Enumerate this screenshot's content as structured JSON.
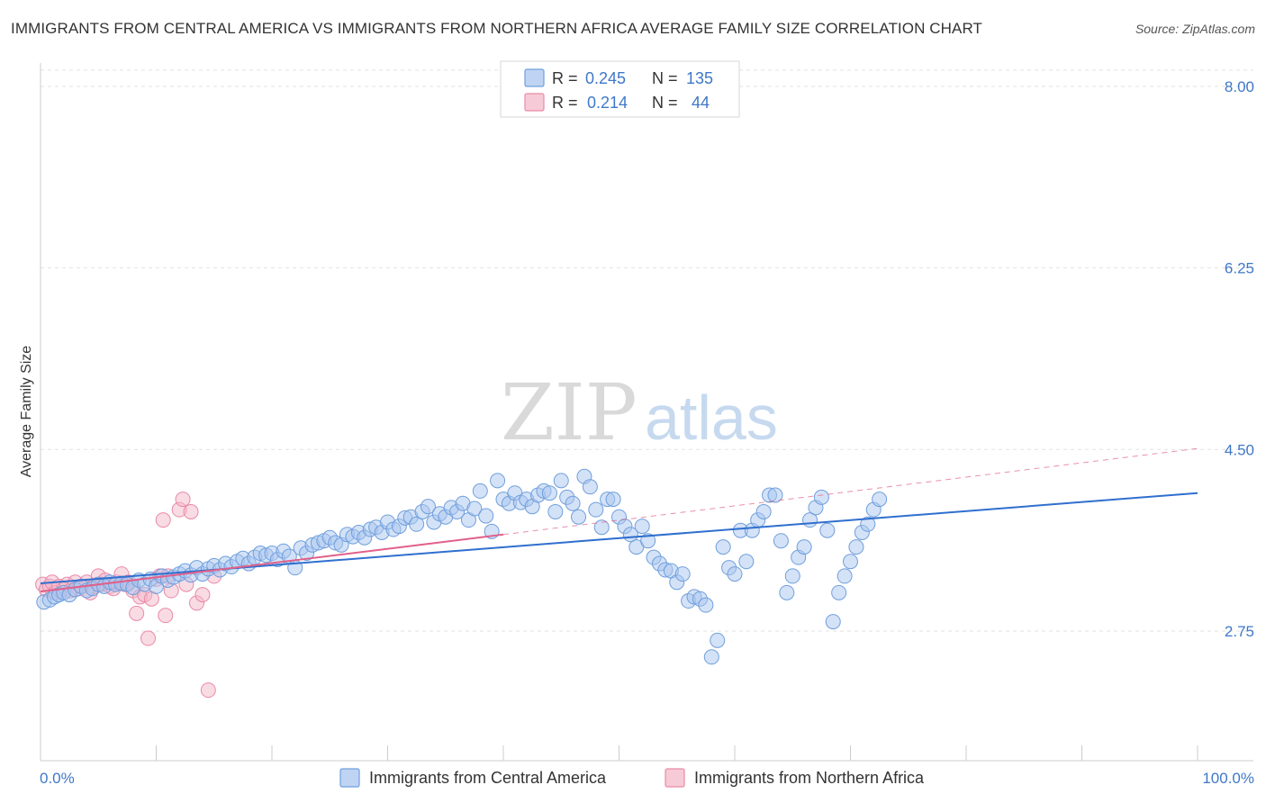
{
  "title": "IMMIGRANTS FROM CENTRAL AMERICA VS IMMIGRANTS FROM NORTHERN AFRICA AVERAGE FAMILY SIZE CORRELATION CHART",
  "source": "Source: ZipAtlas.com",
  "watermark": {
    "zip": "ZIP",
    "atlas": "atlas"
  },
  "legend_top": [
    {
      "r_label": "R =",
      "r_value": "0.245",
      "n_label": "N =",
      "n_value": "135",
      "color": "#a9c6ef"
    },
    {
      "r_label": "R =",
      "r_value": "0.214",
      "n_label": "N =",
      "n_value": "44",
      "color": "#f4b8ca"
    }
  ],
  "colors": {
    "blue_fill": "#a9c6ef",
    "blue_stroke": "#6f9fdc",
    "blue_line": "#2f6fcf",
    "pink_fill": "#f4b8ca",
    "pink_stroke": "#e98aa8",
    "pink_line": "#e0608a",
    "grid": "#e2e2e2",
    "tick_text": "#3f78c8"
  },
  "chart_data": {
    "type": "scatter",
    "title": "IMMIGRANTS FROM CENTRAL AMERICA VS IMMIGRANTS FROM NORTHERN AFRICA AVERAGE FAMILY SIZE CORRELATION CHART",
    "xlabel": "",
    "ylabel": "Average Family Size",
    "xlim": [
      0,
      100
    ],
    "ylim": [
      1.5,
      8.3
    ],
    "x_tick_labels": [
      "0.0%",
      "100.0%"
    ],
    "y_ticks": [
      2.75,
      4.5,
      6.25,
      8.0
    ],
    "y_tick_labels": [
      "2.75",
      "4.50",
      "6.25",
      "8.00"
    ],
    "grid": true,
    "legend_position": "bottom",
    "series": [
      {
        "name": "Immigrants from Central America",
        "color": "#a9c6ef",
        "trend": {
          "x": [
            0,
            100
          ],
          "y": [
            3.21,
            4.08
          ]
        },
        "points": [
          [
            0.3,
            3.03
          ],
          [
            0.8,
            3.05
          ],
          [
            1.2,
            3.08
          ],
          [
            1.6,
            3.1
          ],
          [
            2.0,
            3.12
          ],
          [
            2.5,
            3.1
          ],
          [
            3.0,
            3.15
          ],
          [
            3.5,
            3.18
          ],
          [
            4.0,
            3.14
          ],
          [
            4.5,
            3.16
          ],
          [
            5.0,
            3.2
          ],
          [
            5.5,
            3.18
          ],
          [
            6.0,
            3.22
          ],
          [
            6.5,
            3.2
          ],
          [
            7.0,
            3.21
          ],
          [
            7.5,
            3.2
          ],
          [
            8.0,
            3.17
          ],
          [
            8.5,
            3.24
          ],
          [
            9.0,
            3.2
          ],
          [
            9.5,
            3.25
          ],
          [
            10.0,
            3.18
          ],
          [
            10.5,
            3.28
          ],
          [
            11.0,
            3.24
          ],
          [
            11.5,
            3.27
          ],
          [
            12.0,
            3.3
          ],
          [
            12.5,
            3.33
          ],
          [
            13.0,
            3.29
          ],
          [
            13.5,
            3.36
          ],
          [
            14.0,
            3.3
          ],
          [
            14.5,
            3.35
          ],
          [
            15.0,
            3.38
          ],
          [
            15.5,
            3.34
          ],
          [
            16.0,
            3.4
          ],
          [
            16.5,
            3.37
          ],
          [
            17.0,
            3.42
          ],
          [
            17.5,
            3.45
          ],
          [
            18.0,
            3.4
          ],
          [
            18.5,
            3.46
          ],
          [
            19.0,
            3.5
          ],
          [
            19.5,
            3.48
          ],
          [
            20.0,
            3.5
          ],
          [
            20.5,
            3.44
          ],
          [
            21.0,
            3.52
          ],
          [
            21.5,
            3.47
          ],
          [
            22.0,
            3.36
          ],
          [
            22.5,
            3.55
          ],
          [
            23.0,
            3.5
          ],
          [
            23.5,
            3.58
          ],
          [
            24.0,
            3.6
          ],
          [
            24.5,
            3.62
          ],
          [
            25.0,
            3.65
          ],
          [
            25.5,
            3.6
          ],
          [
            26.0,
            3.58
          ],
          [
            26.5,
            3.68
          ],
          [
            27.0,
            3.66
          ],
          [
            27.5,
            3.7
          ],
          [
            28.0,
            3.65
          ],
          [
            28.5,
            3.73
          ],
          [
            29.0,
            3.75
          ],
          [
            29.5,
            3.7
          ],
          [
            30.0,
            3.8
          ],
          [
            30.5,
            3.73
          ],
          [
            31.0,
            3.76
          ],
          [
            31.5,
            3.84
          ],
          [
            32.0,
            3.85
          ],
          [
            32.5,
            3.78
          ],
          [
            33.0,
            3.9
          ],
          [
            33.5,
            3.95
          ],
          [
            34.0,
            3.8
          ],
          [
            34.5,
            3.88
          ],
          [
            35.0,
            3.85
          ],
          [
            35.5,
            3.94
          ],
          [
            36.0,
            3.9
          ],
          [
            36.5,
            3.98
          ],
          [
            37.0,
            3.82
          ],
          [
            37.5,
            3.93
          ],
          [
            38.0,
            4.1
          ],
          [
            38.5,
            3.86
          ],
          [
            39.0,
            3.71
          ],
          [
            39.5,
            4.2
          ],
          [
            40.0,
            4.02
          ],
          [
            40.5,
            3.98
          ],
          [
            41.0,
            4.08
          ],
          [
            41.5,
            3.99
          ],
          [
            42.0,
            4.02
          ],
          [
            42.5,
            3.95
          ],
          [
            43.0,
            4.06
          ],
          [
            43.5,
            4.1
          ],
          [
            44.0,
            4.08
          ],
          [
            44.5,
            3.9
          ],
          [
            45.0,
            4.2
          ],
          [
            45.5,
            4.04
          ],
          [
            46.0,
            3.98
          ],
          [
            46.5,
            3.85
          ],
          [
            47.0,
            4.24
          ],
          [
            47.5,
            4.14
          ],
          [
            48.0,
            3.92
          ],
          [
            48.5,
            3.75
          ],
          [
            49.0,
            4.02
          ],
          [
            49.5,
            4.02
          ],
          [
            50.0,
            3.85
          ],
          [
            50.5,
            3.76
          ],
          [
            51.0,
            3.68
          ],
          [
            51.5,
            3.56
          ],
          [
            52.0,
            3.76
          ],
          [
            52.5,
            3.62
          ],
          [
            53.0,
            3.46
          ],
          [
            53.5,
            3.4
          ],
          [
            54.0,
            3.34
          ],
          [
            54.5,
            3.33
          ],
          [
            55.0,
            3.22
          ],
          [
            55.5,
            3.3
          ],
          [
            56.0,
            3.04
          ],
          [
            56.5,
            3.08
          ],
          [
            57.0,
            3.06
          ],
          [
            57.5,
            3.0
          ],
          [
            58.0,
            2.5
          ],
          [
            58.5,
            2.66
          ],
          [
            59.0,
            3.56
          ],
          [
            59.5,
            3.36
          ],
          [
            60.0,
            3.3
          ],
          [
            60.5,
            3.72
          ],
          [
            61.0,
            3.42
          ],
          [
            61.5,
            3.72
          ],
          [
            62.0,
            3.82
          ],
          [
            62.5,
            3.9
          ],
          [
            63.0,
            4.06
          ],
          [
            63.5,
            4.06
          ],
          [
            64.0,
            3.62
          ],
          [
            64.5,
            3.12
          ],
          [
            65.0,
            3.28
          ],
          [
            65.5,
            3.46
          ],
          [
            66.0,
            3.56
          ],
          [
            66.5,
            3.82
          ],
          [
            67.0,
            3.94
          ],
          [
            67.5,
            4.04
          ],
          [
            68.0,
            3.72
          ],
          [
            68.5,
            2.84
          ],
          [
            69.0,
            3.12
          ],
          [
            69.5,
            3.28
          ],
          [
            70.0,
            3.42
          ],
          [
            70.5,
            3.56
          ],
          [
            71.0,
            3.7
          ],
          [
            71.5,
            3.78
          ],
          [
            72.0,
            3.92
          ],
          [
            72.5,
            4.02
          ]
        ]
      },
      {
        "name": "Immigrants from Northern Africa",
        "color": "#f4b8ca",
        "trend": {
          "x": [
            0,
            40
          ],
          "y": [
            3.13,
            3.68
          ]
        },
        "trend_dashed": {
          "x": [
            40,
            100
          ],
          "y": [
            3.68,
            4.51
          ]
        },
        "points": [
          [
            0.2,
            3.2
          ],
          [
            0.5,
            3.15
          ],
          [
            0.8,
            3.18
          ],
          [
            1.0,
            3.22
          ],
          [
            1.3,
            3.12
          ],
          [
            1.6,
            3.18
          ],
          [
            2.0,
            3.15
          ],
          [
            2.3,
            3.2
          ],
          [
            2.6,
            3.14
          ],
          [
            3.0,
            3.22
          ],
          [
            3.3,
            3.16
          ],
          [
            3.6,
            3.18
          ],
          [
            4.0,
            3.22
          ],
          [
            4.3,
            3.12
          ],
          [
            4.6,
            3.18
          ],
          [
            5.0,
            3.28
          ],
          [
            5.3,
            3.2
          ],
          [
            5.6,
            3.24
          ],
          [
            6.0,
            3.18
          ],
          [
            6.3,
            3.16
          ],
          [
            6.6,
            3.22
          ],
          [
            7.0,
            3.3
          ],
          [
            7.3,
            3.2
          ],
          [
            7.6,
            3.22
          ],
          [
            8.0,
            3.14
          ],
          [
            8.3,
            2.92
          ],
          [
            8.6,
            3.08
          ],
          [
            9.0,
            3.1
          ],
          [
            9.3,
            2.68
          ],
          [
            9.6,
            3.06
          ],
          [
            10.0,
            3.25
          ],
          [
            10.3,
            3.28
          ],
          [
            10.6,
            3.82
          ],
          [
            10.8,
            2.9
          ],
          [
            11.0,
            3.28
          ],
          [
            11.3,
            3.14
          ],
          [
            12.0,
            3.92
          ],
          [
            12.3,
            4.02
          ],
          [
            12.6,
            3.2
          ],
          [
            13.0,
            3.9
          ],
          [
            13.5,
            3.02
          ],
          [
            14.0,
            3.1
          ],
          [
            14.5,
            2.18
          ],
          [
            15.0,
            3.28
          ]
        ]
      }
    ]
  },
  "bottom_legend": [
    {
      "label": "Immigrants from Central America",
      "color": "#a9c6ef"
    },
    {
      "label": "Immigrants from Northern Africa",
      "color": "#f4b8ca"
    }
  ]
}
